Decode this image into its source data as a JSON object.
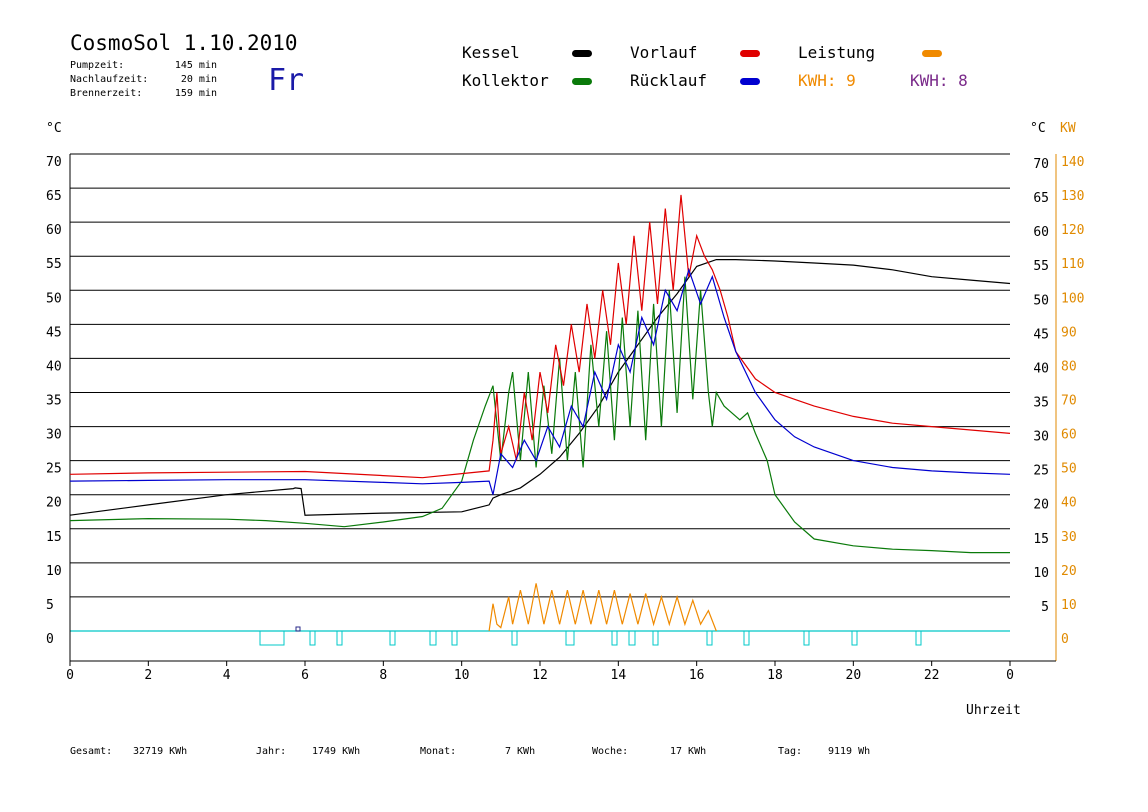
{
  "header": {
    "title": "CosmoSol 1.10.2010",
    "day": "Fr",
    "stats": [
      {
        "label": "Pumpzeit:",
        "value": "145 min"
      },
      {
        "label": "Nachlaufzeit:",
        "value": "20 min"
      },
      {
        "label": "Brennerzeit:",
        "value": "159 min"
      }
    ]
  },
  "legend": {
    "items": [
      {
        "label": "Kessel",
        "color": "#000000"
      },
      {
        "label": "Kollektor",
        "color": "#0a7a0a"
      },
      {
        "label": "Vorlauf",
        "color": "#e00000"
      },
      {
        "label": "Rücklauf",
        "color": "#0000d0"
      },
      {
        "label": "Leistung",
        "color": "#f08a00"
      }
    ],
    "kwh_orange": "KWH: 9",
    "kwh_purple": "KWH: 8",
    "orange_color": "#f08a00",
    "purple_color": "#7a2a8a"
  },
  "axes": {
    "left_unit": "°C",
    "right_unit_c": "°C",
    "right_unit_kw": "KW",
    "x_label": "Uhrzeit"
  },
  "footer": [
    {
      "label": "Gesamt:",
      "value": "32719 KWh"
    },
    {
      "label": "Jahr:",
      "value": "1749 KWh"
    },
    {
      "label": "Monat:",
      "value": "7 KWh"
    },
    {
      "label": "Woche:",
      "value": "17 KWh"
    },
    {
      "label": "Tag:",
      "value": "9119 Wh"
    }
  ],
  "chart_data": {
    "type": "line",
    "xlim": [
      0,
      24
    ],
    "ylim": [
      0,
      70
    ],
    "x_ticks": [
      "0",
      "2",
      "4",
      "6",
      "8",
      "10",
      "12",
      "14",
      "16",
      "18",
      "20",
      "22",
      "0"
    ],
    "x_tick_values": [
      0,
      2,
      4,
      6,
      8,
      10,
      12,
      14,
      16,
      18,
      20,
      22,
      24
    ],
    "y_left_ticks": [
      0,
      5,
      10,
      15,
      20,
      25,
      30,
      35,
      40,
      45,
      50,
      55,
      60,
      65,
      70
    ],
    "y_right_c_ticks": [
      5,
      10,
      15,
      20,
      25,
      30,
      35,
      40,
      45,
      50,
      55,
      60,
      65,
      70
    ],
    "y_right_kw_ticks": [
      0,
      10,
      20,
      30,
      40,
      50,
      60,
      70,
      80,
      90,
      100,
      110,
      120,
      130,
      140
    ],
    "grid": "horizontal",
    "series": [
      {
        "name": "Kessel",
        "color": "#000000",
        "x": [
          0,
          2,
          4,
          5.7,
          5.75,
          5.9,
          6,
          8,
          10,
          10.7,
          10.8,
          11.0,
          11.5,
          12,
          12.5,
          13,
          13.5,
          14,
          14.5,
          15,
          15.5,
          16,
          16.5,
          17,
          18,
          19,
          20,
          21,
          22,
          23,
          24
        ],
        "y": [
          17,
          18.5,
          20,
          20.9,
          21,
          20.9,
          17,
          17.3,
          17.5,
          18.5,
          19.5,
          20,
          21,
          23,
          25.5,
          29,
          33,
          38,
          42,
          46,
          49.5,
          53.5,
          54.5,
          54.5,
          54.3,
          54,
          53.7,
          53,
          52,
          51.5,
          51
        ]
      },
      {
        "name": "Kollektor",
        "color": "#0a7a0a",
        "x": [
          0,
          2,
          4,
          5,
          6,
          7,
          8,
          9,
          9.5,
          10,
          10.3,
          10.6,
          10.8,
          11.0,
          11.2,
          11.3,
          11.5,
          11.7,
          11.9,
          12.1,
          12.3,
          12.5,
          12.7,
          12.9,
          13.1,
          13.3,
          13.5,
          13.7,
          13.9,
          14.1,
          14.3,
          14.5,
          14.7,
          14.9,
          15.1,
          15.3,
          15.5,
          15.7,
          15.9,
          16.1,
          16.3,
          16.4,
          16.5,
          16.7,
          16.9,
          17.1,
          17.3,
          17.5,
          17.8,
          18,
          18.5,
          19,
          20,
          21,
          22,
          23,
          24
        ],
        "y": [
          16.2,
          16.5,
          16.4,
          16.2,
          15.8,
          15.3,
          16,
          16.8,
          18,
          22,
          28,
          33,
          36,
          25,
          35,
          38,
          25,
          38,
          24,
          36,
          26,
          40,
          25,
          38,
          24,
          42,
          30,
          44,
          28,
          46,
          30,
          47,
          28,
          48,
          30,
          50,
          32,
          52,
          34,
          50,
          35,
          30,
          35,
          33,
          32,
          31,
          32,
          29,
          25,
          20,
          16,
          13.5,
          12.5,
          12,
          11.8,
          11.5,
          11.5
        ]
      },
      {
        "name": "Vorlauf",
        "color": "#e00000",
        "x": [
          0,
          2,
          4,
          6,
          8,
          9,
          10,
          10.7,
          10.8,
          10.9,
          11.0,
          11.2,
          11.4,
          11.6,
          11.8,
          12.0,
          12.2,
          12.4,
          12.6,
          12.8,
          13.0,
          13.2,
          13.4,
          13.6,
          13.8,
          14.0,
          14.2,
          14.4,
          14.6,
          14.8,
          15.0,
          15.2,
          15.4,
          15.6,
          15.8,
          16.0,
          16.2,
          16.4,
          16.6,
          16.8,
          17,
          17.5,
          18,
          18.5,
          19,
          20,
          21,
          22,
          23,
          24
        ],
        "y": [
          23,
          23.2,
          23.3,
          23.4,
          22.8,
          22.5,
          23.1,
          23.5,
          28,
          35,
          26,
          30,
          25,
          35,
          28,
          38,
          32,
          42,
          36,
          45,
          38,
          48,
          40,
          50,
          42,
          54,
          45,
          58,
          47,
          60,
          48,
          62,
          50,
          64,
          52,
          58,
          55,
          53,
          50,
          46,
          41,
          37,
          35,
          34,
          33,
          31.5,
          30.5,
          30,
          29.5,
          29
        ]
      },
      {
        "name": "Rücklauf",
        "color": "#0000d0",
        "x": [
          0,
          2,
          4,
          6,
          8,
          9,
          10,
          10.7,
          10.8,
          11.0,
          11.3,
          11.6,
          11.9,
          12.2,
          12.5,
          12.8,
          13.1,
          13.4,
          13.7,
          14.0,
          14.3,
          14.6,
          14.9,
          15.2,
          15.5,
          15.8,
          16.1,
          16.4,
          16.7,
          17,
          17.5,
          18,
          18.5,
          19,
          20,
          21,
          22,
          23,
          24
        ],
        "y": [
          22,
          22.1,
          22.2,
          22.2,
          21.8,
          21.6,
          21.8,
          22,
          20,
          26,
          24,
          28,
          25,
          30,
          27,
          33,
          30,
          38,
          34,
          42,
          38,
          46,
          42,
          50,
          47,
          53,
          48,
          52,
          46,
          41,
          35,
          31,
          28.5,
          27,
          25,
          24,
          23.5,
          23.2,
          23
        ]
      },
      {
        "name": "Leistung",
        "color": "#f08a00",
        "x": [
          10.7,
          10.8,
          10.9,
          11.0,
          11.2,
          11.3,
          11.5,
          11.7,
          11.9,
          12.1,
          12.3,
          12.5,
          12.7,
          12.9,
          13.1,
          13.3,
          13.5,
          13.7,
          13.9,
          14.1,
          14.3,
          14.5,
          14.7,
          14.9,
          15.1,
          15.3,
          15.5,
          15.7,
          15.9,
          16.1,
          16.3,
          16.5
        ],
        "y": [
          0,
          4,
          1,
          0.5,
          5,
          1,
          6,
          1,
          7,
          1,
          6,
          1,
          6,
          1,
          6,
          1,
          6,
          1,
          6,
          1,
          5.5,
          1,
          5.5,
          1,
          5,
          1,
          5,
          1,
          4.5,
          1,
          3,
          0
        ]
      }
    ]
  }
}
